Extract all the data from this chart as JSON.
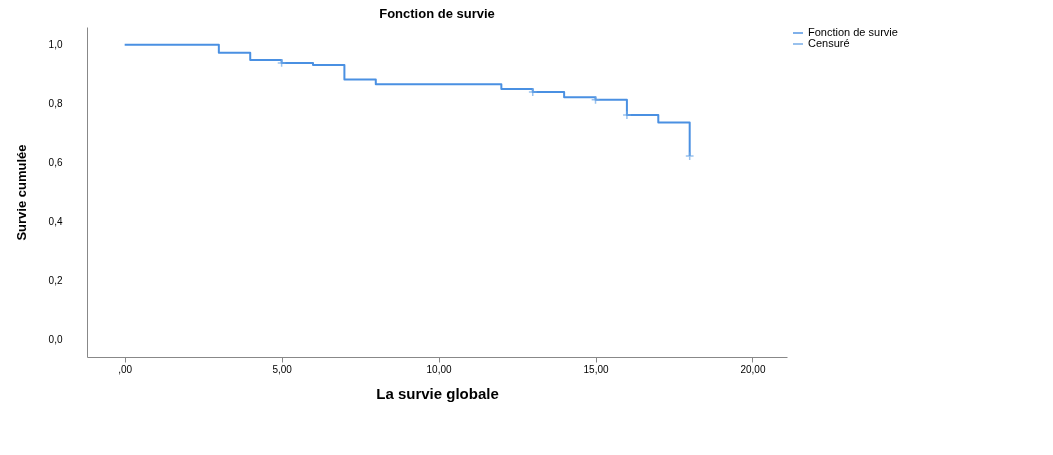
{
  "chart_data": {
    "type": "step",
    "title": "Fonction de survie",
    "xlabel": "La survie globale",
    "ylabel": "Survie cumulée",
    "xlim": [
      -1.2,
      21.1
    ],
    "ylim": [
      -0.06,
      1.06
    ],
    "xticks": [
      {
        "value": 0,
        "label": ",00"
      },
      {
        "value": 5,
        "label": "5,00"
      },
      {
        "value": 10,
        "label": "10,00"
      },
      {
        "value": 15,
        "label": "15,00"
      },
      {
        "value": 20,
        "label": "20,00"
      }
    ],
    "yticks": [
      {
        "value": 0,
        "label": "0,0"
      },
      {
        "value": 0.2,
        "label": "0,2"
      },
      {
        "value": 0.4,
        "label": "0,4"
      },
      {
        "value": 0.6,
        "label": "0,6"
      },
      {
        "value": 0.8,
        "label": "0,8"
      },
      {
        "value": 1,
        "label": "1,0"
      }
    ],
    "grid": false,
    "legend": "top right",
    "series": [
      {
        "name": "Fonction de survie",
        "color": "#4a90e2",
        "x": [
          0,
          3,
          4,
          5,
          6,
          7,
          8,
          12,
          13,
          14,
          15,
          16,
          17,
          18
        ],
        "values": [
          1.0,
          0.973,
          0.948,
          0.938,
          0.931,
          0.882,
          0.866,
          0.85,
          0.839,
          0.822,
          0.813,
          0.761,
          0.736,
          0.622
        ]
      },
      {
        "name": "Censuré",
        "type": "scatter",
        "marker": "cross",
        "color": "#6fa8e6",
        "x": [
          5,
          13,
          15,
          16,
          18
        ],
        "values": [
          0.938,
          0.839,
          0.813,
          0.761,
          0.622
        ]
      }
    ]
  }
}
